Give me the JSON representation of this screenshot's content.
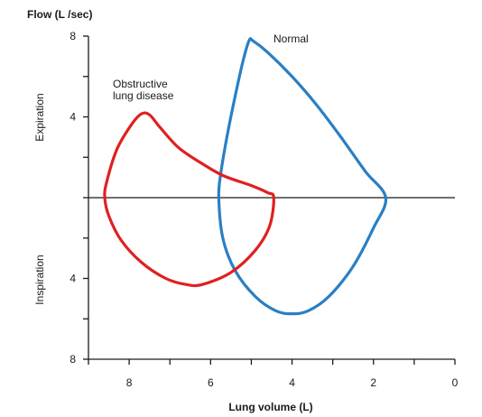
{
  "chart_data": {
    "type": "line",
    "title": "",
    "ylabel": "Flow (L /sec)",
    "xlabel": "Lung volume (L)",
    "x_axis": {
      "reversed": true,
      "lim": [
        0,
        9
      ],
      "ticks": [
        9,
        8,
        7,
        6,
        5,
        4,
        3,
        2,
        1,
        0
      ],
      "tick_labels": [
        "8",
        "6",
        "4",
        "2",
        "0"
      ],
      "tick_label_values": [
        8,
        6,
        4,
        2,
        0
      ]
    },
    "y_axis": {
      "lim": [
        -8,
        8
      ],
      "ticks": [
        8,
        6,
        4,
        2,
        0,
        -2,
        -4,
        -6,
        -8
      ],
      "tick_labels": [
        "8",
        "4",
        "4",
        "8"
      ],
      "tick_label_values": [
        8,
        4,
        -4,
        -8
      ]
    },
    "region_labels": {
      "expiration": "Expiration",
      "inspiration": "Inspiration"
    },
    "series": [
      {
        "name": "Normal",
        "color": "#2a7fc4",
        "points": [
          [
            5.8,
            0
          ],
          [
            5.75,
            1.2
          ],
          [
            5.6,
            3.0
          ],
          [
            5.4,
            5.0
          ],
          [
            5.2,
            6.8
          ],
          [
            5.05,
            7.8
          ],
          [
            4.95,
            7.75
          ],
          [
            4.6,
            7.2
          ],
          [
            4.0,
            6.0
          ],
          [
            3.4,
            4.6
          ],
          [
            2.8,
            3.0
          ],
          [
            2.2,
            1.3
          ],
          [
            1.7,
            0
          ],
          [
            2.0,
            -1.5
          ],
          [
            2.5,
            -3.4
          ],
          [
            3.1,
            -4.9
          ],
          [
            3.6,
            -5.6
          ],
          [
            4.0,
            -5.75
          ],
          [
            4.4,
            -5.6
          ],
          [
            4.9,
            -4.9
          ],
          [
            5.4,
            -3.6
          ],
          [
            5.7,
            -2.0
          ],
          [
            5.8,
            0
          ]
        ]
      },
      {
        "name": "Obstructive lung disease",
        "color": "#e02020",
        "points": [
          [
            8.6,
            0
          ],
          [
            8.55,
            0.8
          ],
          [
            8.3,
            2.4
          ],
          [
            7.95,
            3.6
          ],
          [
            7.7,
            4.15
          ],
          [
            7.5,
            4.1
          ],
          [
            7.25,
            3.5
          ],
          [
            6.8,
            2.5
          ],
          [
            6.3,
            1.8
          ],
          [
            5.7,
            1.1
          ],
          [
            5.0,
            0.6
          ],
          [
            4.6,
            0.25
          ],
          [
            4.45,
            0
          ],
          [
            4.55,
            -1.4
          ],
          [
            4.9,
            -2.6
          ],
          [
            5.5,
            -3.7
          ],
          [
            6.2,
            -4.3
          ],
          [
            6.6,
            -4.3
          ],
          [
            7.1,
            -4.0
          ],
          [
            7.7,
            -3.2
          ],
          [
            8.2,
            -2.1
          ],
          [
            8.5,
            -0.9
          ],
          [
            8.6,
            0
          ]
        ]
      }
    ],
    "line_labels": {
      "normal": "Normal",
      "obstructive_line1": "Obstructive",
      "obstructive_line2": "lung disease"
    }
  }
}
